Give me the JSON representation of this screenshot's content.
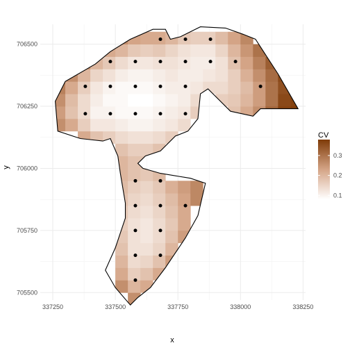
{
  "chart_data": {
    "type": "heatmap",
    "title": "",
    "xlabel": "x",
    "ylabel": "y",
    "xlim": [
      337200,
      338260
    ],
    "ylim": [
      705470,
      706580
    ],
    "x_ticks": [
      {
        "value": 337250,
        "label": "337250"
      },
      {
        "value": 337500,
        "label": "337500"
      },
      {
        "value": 337750,
        "label": "337750"
      },
      {
        "value": 338000,
        "label": "338000"
      },
      {
        "value": 338250,
        "label": "338250"
      }
    ],
    "y_ticks": [
      {
        "value": 705500,
        "label": "705500"
      },
      {
        "value": 705750,
        "label": "705750"
      },
      {
        "value": 706000,
        "label": "706000"
      },
      {
        "value": 706250,
        "label": "706250"
      },
      {
        "value": 706500,
        "label": "706500"
      }
    ],
    "grid": true,
    "legend": {
      "title": "CV",
      "position": "right",
      "ticks": [
        {
          "value": 0.1,
          "label": "0.1"
        },
        {
          "value": 0.2,
          "label": "0.2"
        },
        {
          "value": 0.3,
          "label": "0.3"
        }
      ],
      "range": [
        0.08,
        0.38
      ],
      "low_color": "#ffffff",
      "high_color": "#7f3b08"
    },
    "boundary": [
      [
        337270,
        706150
      ],
      [
        337260,
        706270
      ],
      [
        337300,
        706350
      ],
      [
        337420,
        706420
      ],
      [
        337480,
        706470
      ],
      [
        337560,
        706520
      ],
      [
        337650,
        706560
      ],
      [
        337700,
        706560
      ],
      [
        337720,
        706520
      ],
      [
        337760,
        706530
      ],
      [
        337840,
        706570
      ],
      [
        337940,
        706565
      ],
      [
        338010,
        706540
      ],
      [
        338060,
        706520
      ],
      [
        338150,
        706380
      ],
      [
        338230,
        706240
      ],
      [
        338080,
        706240
      ],
      [
        338050,
        706210
      ],
      [
        337960,
        706230
      ],
      [
        337890,
        706300
      ],
      [
        337870,
        706320
      ],
      [
        337840,
        706300
      ],
      [
        337830,
        706200
      ],
      [
        337790,
        706150
      ],
      [
        337740,
        706130
      ],
      [
        337680,
        706070
      ],
      [
        337620,
        706050
      ],
      [
        337590,
        706020
      ],
      [
        337610,
        706000
      ],
      [
        337680,
        705980
      ],
      [
        337800,
        705960
      ],
      [
        337860,
        705940
      ],
      [
        337830,
        705810
      ],
      [
        337780,
        705720
      ],
      [
        337700,
        705600
      ],
      [
        337640,
        705520
      ],
      [
        337590,
        705480
      ],
      [
        337560,
        705450
      ],
      [
        337500,
        705520
      ],
      [
        337460,
        705590
      ],
      [
        337500,
        705680
      ],
      [
        337540,
        705800
      ],
      [
        337540,
        705860
      ],
      [
        337520,
        705980
      ],
      [
        337510,
        706050
      ],
      [
        337480,
        706120
      ],
      [
        337450,
        706110
      ],
      [
        337360,
        706120
      ]
    ],
    "points": [
      [
        337680,
        706520
      ],
      [
        337780,
        706520
      ],
      [
        337880,
        706520
      ],
      [
        337480,
        706430
      ],
      [
        337580,
        706430
      ],
      [
        337680,
        706430
      ],
      [
        337780,
        706430
      ],
      [
        337880,
        706430
      ],
      [
        337980,
        706430
      ],
      [
        337380,
        706330
      ],
      [
        337480,
        706330
      ],
      [
        337580,
        706330
      ],
      [
        337680,
        706330
      ],
      [
        337780,
        706330
      ],
      [
        338080,
        706330
      ],
      [
        337380,
        706220
      ],
      [
        337480,
        706220
      ],
      [
        337580,
        706220
      ],
      [
        337680,
        706220
      ],
      [
        337780,
        706220
      ],
      [
        337580,
        705950
      ],
      [
        337680,
        705950
      ],
      [
        337580,
        705850
      ],
      [
        337680,
        705850
      ],
      [
        337780,
        705850
      ],
      [
        337580,
        705750
      ],
      [
        337680,
        705750
      ],
      [
        337580,
        705650
      ],
      [
        337680,
        705650
      ],
      [
        337580,
        705550
      ]
    ],
    "cell_size": 50,
    "cv_grid": [
      {
        "x": 337275,
        "row": [
          [
            706175,
            0.26
          ],
          [
            706225,
            0.24
          ],
          [
            706275,
            0.26
          ],
          [
            706325,
            0.28
          ]
        ]
      },
      {
        "x": 337325,
        "row": [
          [
            706175,
            0.22
          ],
          [
            706225,
            0.18
          ],
          [
            706275,
            0.19
          ],
          [
            706325,
            0.22
          ],
          [
            706375,
            0.26
          ]
        ]
      },
      {
        "x": 337375,
        "row": [
          [
            706125,
            0.22
          ],
          [
            706175,
            0.16
          ],
          [
            706225,
            0.14
          ],
          [
            706275,
            0.14
          ],
          [
            706325,
            0.16
          ],
          [
            706375,
            0.2
          ],
          [
            706425,
            0.26
          ]
        ]
      },
      {
        "x": 337425,
        "row": [
          [
            706125,
            0.18
          ],
          [
            706175,
            0.12
          ],
          [
            706225,
            0.1
          ],
          [
            706275,
            0.11
          ],
          [
            706325,
            0.12
          ],
          [
            706375,
            0.15
          ],
          [
            706425,
            0.2
          ],
          [
            706475,
            0.26
          ]
        ]
      },
      {
        "x": 337475,
        "row": [
          [
            706125,
            0.16
          ],
          [
            706175,
            0.12
          ],
          [
            706225,
            0.1
          ],
          [
            706275,
            0.09
          ],
          [
            706325,
            0.1
          ],
          [
            706375,
            0.13
          ],
          [
            706425,
            0.17
          ],
          [
            706475,
            0.22
          ]
        ]
      },
      {
        "x": 337525,
        "row": [
          [
            705525,
            0.26
          ],
          [
            705575,
            0.22
          ],
          [
            705625,
            0.2
          ],
          [
            705675,
            0.18
          ],
          [
            705725,
            0.17
          ],
          [
            705775,
            0.16
          ],
          [
            705825,
            0.17
          ],
          [
            705875,
            0.18
          ],
          [
            705925,
            0.19
          ],
          [
            705975,
            0.2
          ],
          [
            706025,
            0.2
          ],
          [
            706075,
            0.18
          ],
          [
            706125,
            0.14
          ],
          [
            706175,
            0.11
          ],
          [
            706225,
            0.09
          ],
          [
            706275,
            0.09
          ],
          [
            706325,
            0.09
          ],
          [
            706375,
            0.11
          ],
          [
            706425,
            0.14
          ],
          [
            706475,
            0.2
          ],
          [
            706525,
            0.26
          ]
        ]
      },
      {
        "x": 337575,
        "row": [
          [
            705475,
            0.26
          ],
          [
            705525,
            0.2
          ],
          [
            705575,
            0.16
          ],
          [
            705625,
            0.14
          ],
          [
            705675,
            0.13
          ],
          [
            705725,
            0.13
          ],
          [
            705775,
            0.13
          ],
          [
            705825,
            0.14
          ],
          [
            705875,
            0.15
          ],
          [
            705925,
            0.16
          ],
          [
            705975,
            0.18
          ],
          [
            706025,
            0.18
          ],
          [
            706075,
            0.16
          ],
          [
            706125,
            0.13
          ],
          [
            706175,
            0.1
          ],
          [
            706225,
            0.09
          ],
          [
            706275,
            0.08
          ],
          [
            706325,
            0.09
          ],
          [
            706375,
            0.1
          ],
          [
            706425,
            0.12
          ],
          [
            706475,
            0.17
          ],
          [
            706525,
            0.23
          ]
        ]
      },
      {
        "x": 337625,
        "row": [
          [
            705525,
            0.22
          ],
          [
            705575,
            0.18
          ],
          [
            705625,
            0.15
          ],
          [
            705675,
            0.13
          ],
          [
            705725,
            0.12
          ],
          [
            705775,
            0.12
          ],
          [
            705825,
            0.13
          ],
          [
            705875,
            0.14
          ],
          [
            705925,
            0.15
          ],
          [
            705975,
            0.17
          ],
          [
            706025,
            0.18
          ],
          [
            706075,
            0.16
          ],
          [
            706125,
            0.13
          ],
          [
            706175,
            0.1
          ],
          [
            706225,
            0.09
          ],
          [
            706275,
            0.08
          ],
          [
            706325,
            0.09
          ],
          [
            706375,
            0.1
          ],
          [
            706425,
            0.12
          ],
          [
            706475,
            0.16
          ],
          [
            706525,
            0.22
          ]
        ]
      },
      {
        "x": 337675,
        "row": [
          [
            705575,
            0.22
          ],
          [
            705625,
            0.18
          ],
          [
            705675,
            0.15
          ],
          [
            705725,
            0.14
          ],
          [
            705775,
            0.14
          ],
          [
            705825,
            0.15
          ],
          [
            705875,
            0.16
          ],
          [
            705925,
            0.17
          ],
          [
            705975,
            0.19
          ],
          [
            706075,
            0.18
          ],
          [
            706125,
            0.14
          ],
          [
            706175,
            0.11
          ],
          [
            706225,
            0.1
          ],
          [
            706275,
            0.09
          ],
          [
            706325,
            0.1
          ],
          [
            706375,
            0.11
          ],
          [
            706425,
            0.13
          ],
          [
            706475,
            0.17
          ],
          [
            706525,
            0.22
          ]
        ]
      },
      {
        "x": 337725,
        "row": [
          [
            705625,
            0.24
          ],
          [
            705675,
            0.2
          ],
          [
            705725,
            0.18
          ],
          [
            705775,
            0.17
          ],
          [
            705825,
            0.18
          ],
          [
            705875,
            0.19
          ],
          [
            705925,
            0.21
          ],
          [
            706125,
            0.16
          ],
          [
            706175,
            0.12
          ],
          [
            706225,
            0.11
          ],
          [
            706275,
            0.1
          ],
          [
            706325,
            0.11
          ],
          [
            706375,
            0.12
          ],
          [
            706425,
            0.13
          ],
          [
            706475,
            0.15
          ],
          [
            706525,
            0.2
          ]
        ]
      },
      {
        "x": 337775,
        "row": [
          [
            705725,
            0.24
          ],
          [
            705775,
            0.22
          ],
          [
            705825,
            0.22
          ],
          [
            705875,
            0.23
          ],
          [
            705925,
            0.24
          ],
          [
            706175,
            0.14
          ],
          [
            706225,
            0.12
          ],
          [
            706275,
            0.11
          ],
          [
            706325,
            0.11
          ],
          [
            706375,
            0.11
          ],
          [
            706425,
            0.12
          ],
          [
            706475,
            0.13
          ],
          [
            706525,
            0.17
          ]
        ]
      },
      {
        "x": 337825,
        "row": [
          [
            705875,
            0.27
          ],
          [
            705925,
            0.27
          ],
          [
            706225,
            0.16
          ],
          [
            706275,
            0.14
          ],
          [
            706325,
            0.12
          ],
          [
            706375,
            0.11
          ],
          [
            706425,
            0.11
          ],
          [
            706475,
            0.12
          ],
          [
            706525,
            0.16
          ]
        ]
      },
      {
        "x": 337875,
        "row": [
          [
            706325,
            0.14
          ],
          [
            706375,
            0.12
          ],
          [
            706425,
            0.11
          ],
          [
            706475,
            0.12
          ],
          [
            706525,
            0.16
          ]
        ]
      },
      {
        "x": 337925,
        "row": [
          [
            706275,
            0.16
          ],
          [
            706325,
            0.14
          ],
          [
            706375,
            0.13
          ],
          [
            706425,
            0.13
          ],
          [
            706475,
            0.15
          ],
          [
            706525,
            0.19
          ]
        ]
      },
      {
        "x": 337975,
        "row": [
          [
            706225,
            0.18
          ],
          [
            706275,
            0.17
          ],
          [
            706325,
            0.16
          ],
          [
            706375,
            0.16
          ],
          [
            706425,
            0.18
          ],
          [
            706475,
            0.2
          ],
          [
            706525,
            0.23
          ]
        ]
      },
      {
        "x": 338025,
        "row": [
          [
            706225,
            0.22
          ],
          [
            706275,
            0.2
          ],
          [
            706325,
            0.19
          ],
          [
            706375,
            0.21
          ],
          [
            706425,
            0.23
          ],
          [
            706475,
            0.25
          ],
          [
            706525,
            0.27
          ]
        ]
      },
      {
        "x": 338075,
        "row": [
          [
            706225,
            0.26
          ],
          [
            706275,
            0.24
          ],
          [
            706325,
            0.24
          ],
          [
            706375,
            0.26
          ],
          [
            706425,
            0.28
          ],
          [
            706475,
            0.3
          ]
        ]
      },
      {
        "x": 338125,
        "row": [
          [
            706225,
            0.32
          ],
          [
            706275,
            0.3
          ],
          [
            706325,
            0.3
          ],
          [
            706375,
            0.31
          ],
          [
            706425,
            0.33
          ]
        ]
      },
      {
        "x": 338175,
        "row": [
          [
            706225,
            0.37
          ],
          [
            706275,
            0.36
          ],
          [
            706325,
            0.35
          ],
          [
            706375,
            0.36
          ]
        ]
      },
      {
        "x": 338225,
        "row": [
          [
            706225,
            0.38
          ],
          [
            706275,
            0.37
          ]
        ]
      }
    ]
  }
}
